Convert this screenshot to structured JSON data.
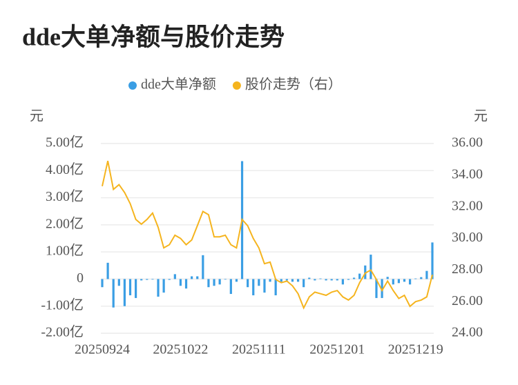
{
  "chart_data": {
    "type": "bar-line",
    "title": "dde大单净额与股价走势",
    "y_label": "元",
    "y2_label": "元",
    "categories": [
      "20250924",
      null,
      null,
      null,
      null,
      null,
      null,
      null,
      null,
      null,
      null,
      null,
      null,
      null,
      "20251022",
      null,
      null,
      null,
      null,
      null,
      null,
      null,
      null,
      null,
      null,
      null,
      null,
      null,
      "20251111",
      null,
      null,
      null,
      null,
      null,
      null,
      null,
      null,
      null,
      null,
      null,
      null,
      null,
      "20251201",
      null,
      null,
      null,
      null,
      null,
      null,
      null,
      null,
      null,
      null,
      null,
      null,
      null,
      "20251219",
      null,
      null,
      null
    ],
    "series": [
      {
        "name": "dde大单净额",
        "color": "#3a9ee4",
        "type": "bar",
        "values": [
          -0.3,
          0.6,
          -1.05,
          -0.25,
          -1.0,
          -0.6,
          -0.7,
          -0.05,
          -0.03,
          -0.02,
          -0.65,
          -0.5,
          -0.03,
          0.18,
          -0.25,
          -0.35,
          0.1,
          0.1,
          0.88,
          -0.3,
          -0.25,
          -0.2,
          -0.02,
          -0.55,
          -0.1,
          4.35,
          -0.3,
          -0.6,
          -0.25,
          -0.5,
          -0.1,
          -0.6,
          -0.1,
          -0.05,
          -0.1,
          -0.1,
          -0.3,
          0.05,
          -0.05,
          0.02,
          -0.05,
          -0.05,
          -0.05,
          -0.2,
          -0.03,
          0.05,
          0.2,
          0.5,
          0.9,
          -0.7,
          -0.7,
          0.08,
          -0.2,
          -0.15,
          -0.1,
          -0.2,
          0.02,
          0.07,
          0.3,
          1.35
        ]
      },
      {
        "name": "股价走势（右）",
        "color": "#f5b41e",
        "type": "line",
        "axis": "y2",
        "values": [
          33.3,
          34.9,
          33.1,
          33.4,
          32.9,
          32.2,
          31.2,
          30.9,
          31.2,
          31.6,
          30.7,
          29.4,
          29.6,
          30.2,
          30.0,
          29.6,
          29.9,
          30.8,
          31.7,
          31.5,
          30.1,
          30.1,
          30.2,
          29.6,
          29.4,
          31.2,
          30.8,
          30.0,
          29.4,
          28.4,
          28.5,
          27.4,
          27.2,
          27.3,
          27.0,
          26.5,
          25.6,
          26.3,
          26.6,
          26.5,
          26.4,
          26.6,
          26.7,
          26.3,
          26.1,
          26.4,
          27.2,
          27.8,
          28.0,
          27.4,
          26.7,
          27.3,
          26.7,
          26.2,
          26.4,
          25.7,
          26.0,
          26.1,
          26.3,
          27.7
        ]
      }
    ],
    "ylim": [
      -2,
      5
    ],
    "yticks": [
      {
        "value": -2,
        "label": "-2.00亿"
      },
      {
        "value": -1,
        "label": "-1.00亿"
      },
      0,
      {
        "value": 1,
        "label": "1.00亿"
      },
      {
        "value": 2,
        "label": "2.00亿"
      },
      {
        "value": 3,
        "label": "3.00亿"
      },
      {
        "value": 4,
        "label": "4.00亿"
      },
      {
        "value": 5,
        "label": "5.00亿"
      }
    ],
    "y2lim": [
      24,
      36
    ],
    "y2ticks": [
      {
        "value": 24,
        "label": "24.00"
      },
      {
        "value": 26,
        "label": "26.00"
      },
      {
        "value": 28,
        "label": "28.00"
      },
      {
        "value": 30,
        "label": "30.00"
      },
      {
        "value": 32,
        "label": "32.00"
      },
      {
        "value": 34,
        "label": "34.00"
      },
      {
        "value": 36,
        "label": "36.00"
      }
    ],
    "grid": true
  }
}
